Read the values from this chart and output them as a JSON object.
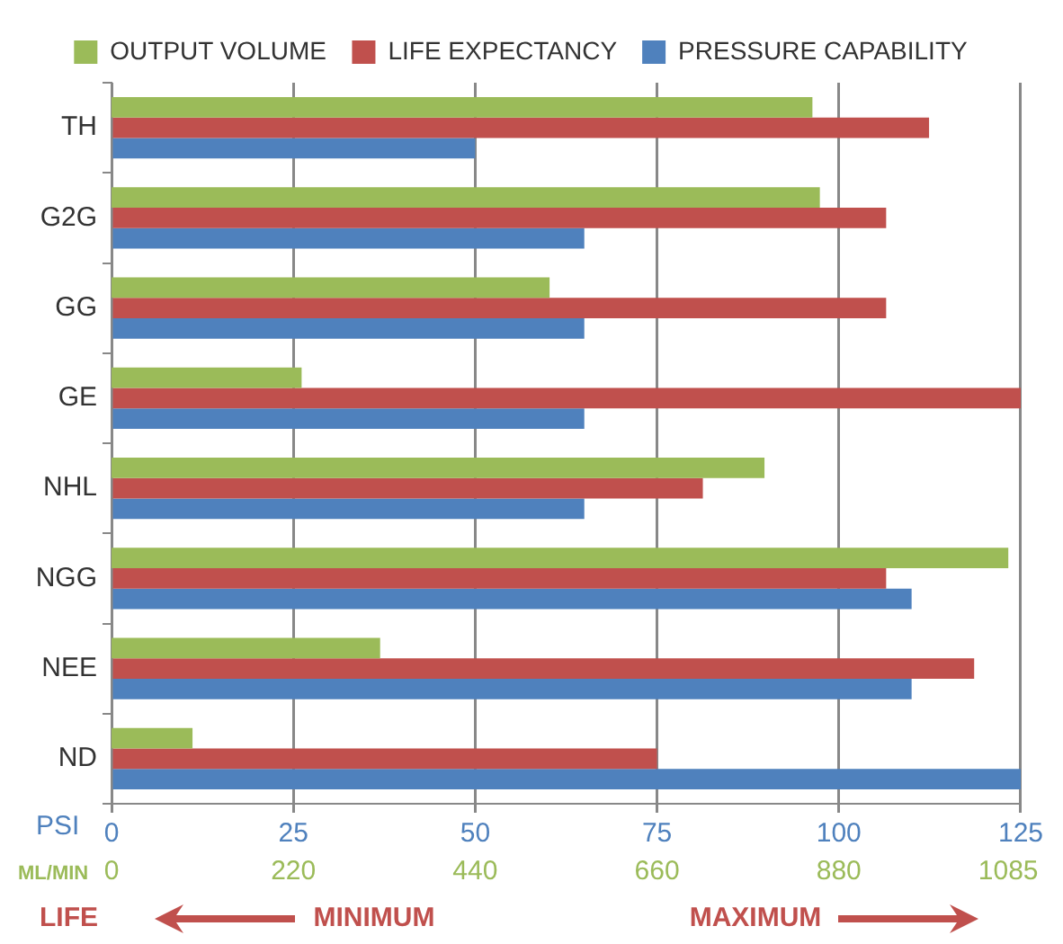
{
  "chart_data": {
    "type": "bar",
    "orientation": "horizontal",
    "categories": [
      "TH",
      "G2G",
      "GG",
      "GE",
      "NHL",
      "NGG",
      "NEE",
      "ND"
    ],
    "series": [
      {
        "name": "OUTPUT VOLUME",
        "color": "#9bbb59",
        "axis": "x2",
        "values": [
          848,
          857,
          530,
          230,
          790,
          1085,
          325,
          98
        ]
      },
      {
        "name": "LIFE EXPECTANCY",
        "color": "#c0504d",
        "values": [
          112.4,
          106.5,
          106.5,
          125,
          81.3,
          106.5,
          118.6,
          75
        ]
      },
      {
        "name": "PRESSURE CAPABILITY",
        "color": "#4f81bd",
        "values": [
          50,
          65,
          65,
          65,
          65,
          110,
          110,
          125
        ]
      }
    ],
    "xlabel": "PSI",
    "xlim": [
      0,
      125
    ],
    "xticks": [
      0,
      25,
      50,
      75,
      100,
      125
    ],
    "x2label": "ML/MIN",
    "x2lim": [
      0,
      1100
    ],
    "x2ticks": [
      0,
      220,
      440,
      660,
      880,
      1085
    ],
    "annotations": [
      "LIFE",
      "MINIMUM",
      "MAXIMUM"
    ],
    "grid": "x",
    "legend": "top"
  }
}
